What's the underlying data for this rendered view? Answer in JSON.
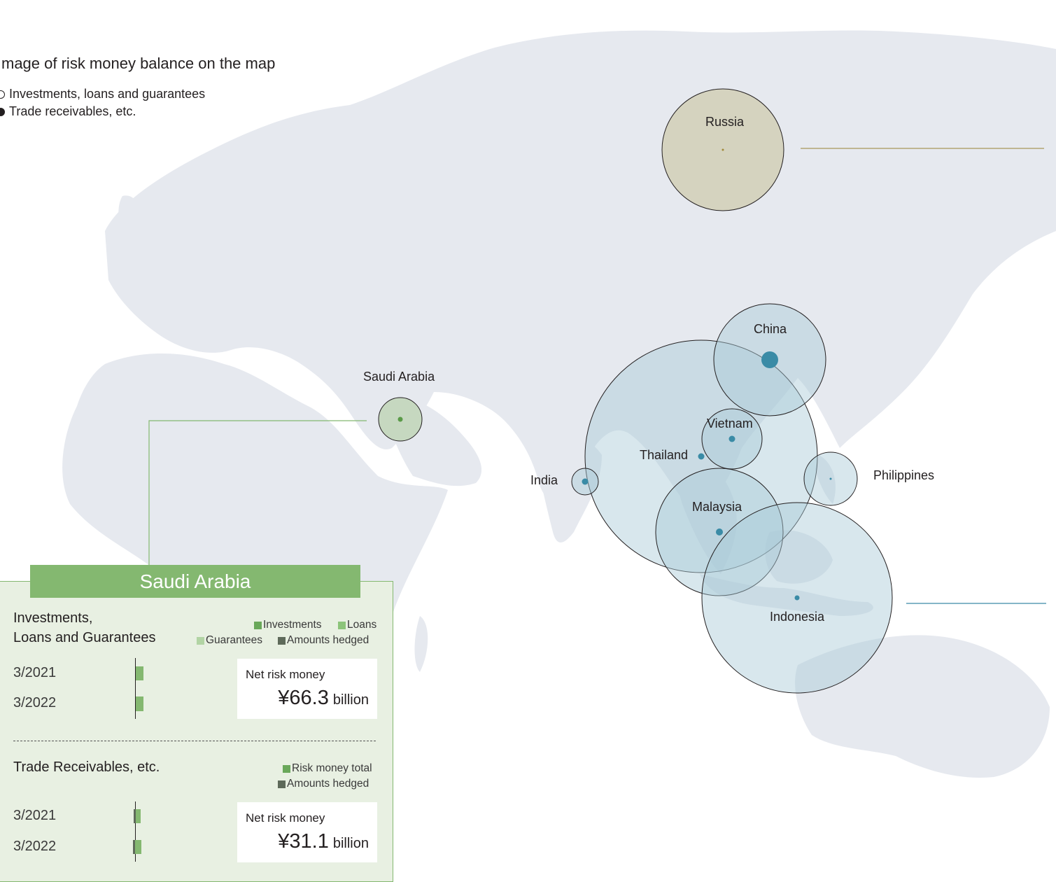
{
  "legend": {
    "title": "mage of risk money balance on the map",
    "items": [
      {
        "label": "Investments, loans and guarantees",
        "style": "outline"
      },
      {
        "label": "Trade receivables, etc.",
        "style": "filled"
      }
    ]
  },
  "colors": {
    "land": "#e6e9ef",
    "asia_bubble": "#a9cad8",
    "asia_dot": "#3a8ba6",
    "russia_bubble": "#d5d3bf",
    "russia_dot": "#a08a3a",
    "mideast_bubble": "#c6d8c0",
    "mideast_dot": "#5a9a48",
    "panel_green": "#84b870",
    "panel_bg": "#e8f0e2",
    "hedged": "#5e6a5a"
  },
  "map_labels": {
    "russia": "Russia",
    "china": "China",
    "saudi_arabia": "Saudi Arabia",
    "vietnam": "Vietnam",
    "thailand": "Thailand",
    "india": "India",
    "philippines": "Philippines",
    "malaysia": "Malaysia",
    "indonesia": "Indonesia"
  },
  "panel": {
    "country": "Saudi Arabia",
    "investments": {
      "title_line1": "Investments,",
      "title_line2": "Loans and Guarantees",
      "legend": [
        "Investments",
        "Loans",
        "Guarantees",
        "Amounts hedged"
      ],
      "rows": [
        {
          "year": "3/2021"
        },
        {
          "year": "3/2022"
        }
      ],
      "net_label": "Net risk money",
      "net_value": "¥66.3",
      "net_unit": "billion"
    },
    "trade": {
      "title": "Trade Receivables, etc.",
      "legend": [
        "Risk money total",
        "Amounts hedged"
      ],
      "rows": [
        {
          "year": "3/2021"
        },
        {
          "year": "3/2022"
        }
      ],
      "net_label": "Net risk money",
      "net_value": "¥31.1",
      "net_unit": "billion"
    }
  }
}
